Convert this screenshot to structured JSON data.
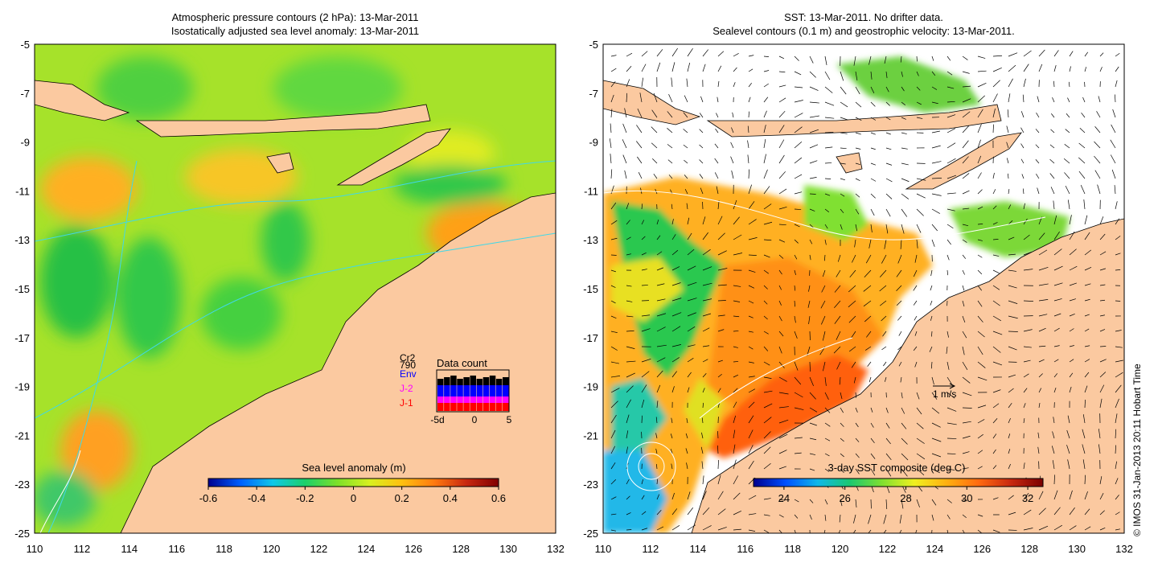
{
  "left_panel": {
    "title_line1": "Atmospheric pressure contours (2 hPa): 13-Mar-2011",
    "title_line2": "Isostatically adjusted sea level anomaly: 13-Mar-2011",
    "colorbar": {
      "title": "Sea level anomaly (m)",
      "range": [
        -0.6,
        0.6
      ],
      "ticks": [
        "-0.6",
        "-0.4",
        "-0.2",
        "0",
        "0.2",
        "0.4",
        "0.6"
      ],
      "colors": [
        "#00008f",
        "#0060ff",
        "#10c8e8",
        "#1bd06a",
        "#7ce02a",
        "#d8f020",
        "#ffc010",
        "#ff7a10",
        "#c82810",
        "#800000"
      ]
    },
    "inset": {
      "title": "Data count",
      "satellites": [
        {
          "label": "Cr2",
          "color": "#000000"
        },
        {
          "label": "Env",
          "color": "#0000ff"
        },
        {
          "label": "J-2",
          "color": "#ff00ff"
        },
        {
          "label": "J-1",
          "color": "#ff0000"
        }
      ],
      "count_label": "790",
      "xticks": [
        "-5d",
        "0",
        "5"
      ]
    }
  },
  "right_panel": {
    "title_line1": "SST: 13-Mar-2011. No drifter data.",
    "title_line2": "Sealevel contours (0.1 m) and geostrophic velocity: 13-Mar-2011.",
    "colorbar": {
      "title": "3-day SST composite (deg C)",
      "range": [
        23,
        32.5
      ],
      "ticks": [
        "24",
        "26",
        "28",
        "30",
        "32"
      ],
      "colors": [
        "#00008f",
        "#0050ff",
        "#10b8e8",
        "#1bc870",
        "#80e030",
        "#f0f020",
        "#ffb010",
        "#ff6a10",
        "#c82810",
        "#7a0000"
      ]
    },
    "velocity_scale_label": "1 m/s"
  },
  "axes": {
    "x_ticks": [
      "110",
      "112",
      "114",
      "116",
      "118",
      "120",
      "122",
      "124",
      "126",
      "128",
      "130",
      "132"
    ],
    "y_ticks": [
      "-5",
      "-7",
      "-9",
      "-11",
      "-13",
      "-15",
      "-17",
      "-19",
      "-21",
      "-23",
      "-25"
    ],
    "lon_range": [
      110,
      132
    ],
    "lat_range": [
      -25,
      -5
    ]
  },
  "colors": {
    "land": "#fbc9a0",
    "no_data": "#ffffff",
    "sla_base": "#9ee028",
    "sla_high": "#ffb020",
    "sla_low": "#28c838",
    "sst_warm": "#ff9020",
    "sst_mid": "#ffd020"
  },
  "credit": "© IMOS 31-Jan-2013 20:11 Hobart Time"
}
